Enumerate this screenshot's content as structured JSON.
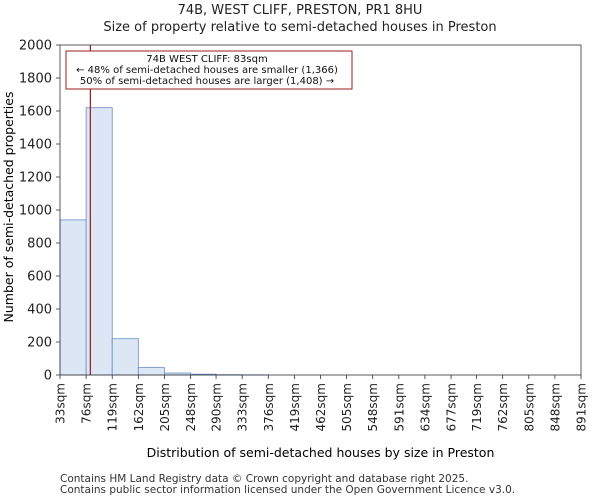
{
  "header": {
    "title": "74B, WEST CLIFF, PRESTON, PR1 8HU",
    "subtitle": "Size of property relative to semi-detached houses in Preston"
  },
  "footer": {
    "line1": "Contains HM Land Registry data © Crown copyright and database right 2025.",
    "line2": "Contains public sector information licensed under the Open Government Licence v3.0."
  },
  "chart_data": {
    "type": "bar",
    "title": "Size of property relative to semi-detached houses in Preston",
    "xlabel": "Distribution of semi-detached houses by size in Preston",
    "ylabel": "Number of semi-detached properties",
    "ylim": [
      0,
      2000
    ],
    "yticks": [
      0,
      200,
      400,
      600,
      800,
      1000,
      1200,
      1400,
      1600,
      1800,
      2000
    ],
    "xlim": [
      33,
      891
    ],
    "bin_edges": [
      33,
      76,
      119,
      162,
      205,
      248,
      290,
      333,
      376,
      419,
      462,
      505,
      548,
      591,
      634,
      677,
      719,
      762,
      805,
      848,
      891
    ],
    "tick_labels": [
      "33sqm",
      "76sqm",
      "119sqm",
      "162sqm",
      "205sqm",
      "248sqm",
      "290sqm",
      "333sqm",
      "376sqm",
      "419sqm",
      "462sqm",
      "505sqm",
      "548sqm",
      "591sqm",
      "634sqm",
      "677sqm",
      "719sqm",
      "762sqm",
      "805sqm",
      "848sqm",
      "891sqm"
    ],
    "values": [
      940,
      1620,
      220,
      45,
      12,
      5,
      2,
      1,
      0,
      0,
      0,
      0,
      0,
      0,
      0,
      0,
      0,
      0,
      0,
      0
    ],
    "marker": {
      "value": 83,
      "label": "74B WEST CLIFF: 83sqm"
    },
    "annotation": [
      "74B WEST CLIFF: 83sqm",
      "← 48% of semi-detached houses are smaller (1,366)",
      "50% of semi-detached houses are larger (1,408) →"
    ],
    "grid": false
  },
  "colors": {
    "bar_fill": "#dce6f4",
    "bar_stroke": "#6a8ec2",
    "marker": "#9b1c1c",
    "axis": "#333333"
  }
}
